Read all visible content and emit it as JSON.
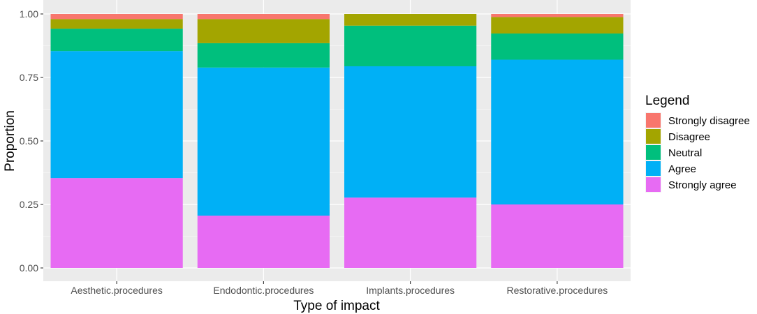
{
  "chart_data": {
    "type": "bar",
    "stacked": true,
    "xlabel": "Type of impact",
    "ylabel": "Proportion",
    "ylim": [
      0,
      1
    ],
    "yticks": [
      "0.00",
      "0.25",
      "0.50",
      "0.75",
      "1.00"
    ],
    "categories": [
      "Aesthetic.procedures",
      "Endodontic.procedures",
      "Implants.procedures",
      "Restorative.procedures"
    ],
    "grid": true,
    "legend": {
      "title": "Legend",
      "position": "right"
    },
    "series": [
      {
        "name": "Strongly agree",
        "color": "#E76BF3",
        "values": [
          0.354,
          0.206,
          0.277,
          0.25
        ]
      },
      {
        "name": "Agree",
        "color": "#00B0F6",
        "values": [
          0.5,
          0.583,
          0.517,
          0.57
        ]
      },
      {
        "name": "Neutral",
        "color": "#00BF7D",
        "values": [
          0.088,
          0.096,
          0.16,
          0.103
        ]
      },
      {
        "name": "Disagree",
        "color": "#A3A500",
        "values": [
          0.038,
          0.095,
          0.046,
          0.065
        ]
      },
      {
        "name": "Strongly disagree",
        "color": "#F8766D",
        "values": [
          0.02,
          0.02,
          0.0,
          0.012
        ]
      }
    ],
    "legend_order": [
      "Strongly disagree",
      "Disagree",
      "Neutral",
      "Agree",
      "Strongly agree"
    ]
  }
}
